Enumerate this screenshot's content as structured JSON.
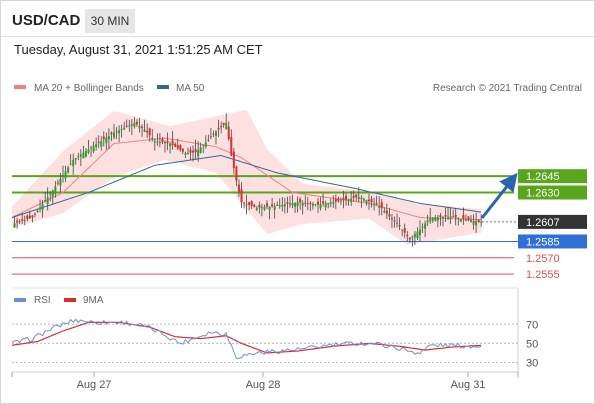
{
  "header": {
    "symbol": "USD/CAD",
    "timeframe": "30 MIN"
  },
  "datetime": "Tuesday, August 31, 2021 1:51:25 AM CET",
  "legend": {
    "bollinger": "MA 20 + Bollinger Bands",
    "ma50": "MA 50",
    "credit": "Research © 2021 Trading Central"
  },
  "rsi_legend": {
    "rsi": "RSI",
    "ma9": "9MA"
  },
  "colors": {
    "up": "#2e9e2e",
    "down": "#d63031",
    "ma20": "#f08080",
    "band_fill": "#fde1e1",
    "ma50": "#336699",
    "resistance": "#5aa51e",
    "support_blue": "#2f6fd6",
    "support_red": "#d9534f",
    "arrow": "#2b64b0",
    "current": "#333333",
    "rsi": "#6a8fd8",
    "rsi_ma": "#d32f2f"
  },
  "chart_data": [
    {
      "type": "line",
      "name": "price",
      "x_labels": [
        "Aug 27",
        "Aug 28",
        "Aug 31"
      ],
      "ylim": [
        1.2545,
        1.2715
      ],
      "current_price": "1.2607",
      "price_levels": [
        {
          "value": 1.2645,
          "label": "1.2645",
          "kind": "resistance"
        },
        {
          "value": 1.263,
          "label": "1.2630",
          "kind": "resistance"
        },
        {
          "value": 1.2585,
          "label": "1.2585",
          "kind": "support_blue"
        },
        {
          "value": 1.257,
          "label": "1.2570",
          "kind": "support_red"
        },
        {
          "value": 1.2555,
          "label": "1.2555",
          "kind": "support_red"
        }
      ],
      "close_path": [
        [
          0,
          1.2601
        ],
        [
          8,
          1.2607
        ],
        [
          16,
          1.2632
        ],
        [
          24,
          1.266
        ],
        [
          32,
          1.2673
        ],
        [
          40,
          1.2685
        ],
        [
          48,
          1.2694
        ],
        [
          52,
          1.2688
        ],
        [
          56,
          1.2677
        ],
        [
          62,
          1.2675
        ],
        [
          68,
          1.2666
        ],
        [
          72,
          1.2667
        ],
        [
          76,
          1.2676
        ],
        [
          80,
          1.2686
        ],
        [
          84,
          1.2694
        ],
        [
          86,
          1.2664
        ],
        [
          88,
          1.2641
        ],
        [
          90,
          1.2621
        ],
        [
          96,
          1.2616
        ],
        [
          104,
          1.2618
        ],
        [
          112,
          1.2621
        ],
        [
          120,
          1.2619
        ],
        [
          128,
          1.2622
        ],
        [
          136,
          1.2626
        ],
        [
          144,
          1.2618
        ],
        [
          148,
          1.2608
        ],
        [
          152,
          1.2599
        ],
        [
          156,
          1.2587
        ],
        [
          158,
          1.2592
        ],
        [
          160,
          1.2596
        ],
        [
          164,
          1.2607
        ],
        [
          172,
          1.2608
        ],
        [
          180,
          1.2604
        ],
        [
          184,
          1.2603
        ]
      ],
      "ma50_path": [
        [
          0,
          1.2607
        ],
        [
          30,
          1.263
        ],
        [
          56,
          1.2655
        ],
        [
          82,
          1.2664
        ],
        [
          104,
          1.2648
        ],
        [
          134,
          1.2634
        ],
        [
          160,
          1.262
        ],
        [
          184,
          1.2612
        ]
      ],
      "ma20_path": [
        [
          0,
          1.2607
        ],
        [
          20,
          1.263
        ],
        [
          40,
          1.2675
        ],
        [
          60,
          1.268
        ],
        [
          80,
          1.2672
        ],
        [
          90,
          1.2662
        ],
        [
          110,
          1.263
        ],
        [
          140,
          1.262
        ],
        [
          160,
          1.2607
        ],
        [
          184,
          1.2605
        ]
      ],
      "band_upper_path": [
        [
          0,
          1.2617
        ],
        [
          20,
          1.2668
        ],
        [
          40,
          1.2705
        ],
        [
          62,
          1.2691
        ],
        [
          80,
          1.27
        ],
        [
          92,
          1.2706
        ],
        [
          100,
          1.267
        ],
        [
          114,
          1.2638
        ],
        [
          140,
          1.2631
        ],
        [
          160,
          1.2619
        ],
        [
          184,
          1.2615
        ]
      ],
      "band_lower_path": [
        [
          0,
          1.2597
        ],
        [
          20,
          1.2611
        ],
        [
          40,
          1.2644
        ],
        [
          60,
          1.266
        ],
        [
          80,
          1.2648
        ],
        [
          90,
          1.262
        ],
        [
          100,
          1.2592
        ],
        [
          114,
          1.2601
        ],
        [
          140,
          1.2606
        ],
        [
          155,
          1.2582
        ],
        [
          184,
          1.2593
        ]
      ]
    },
    {
      "type": "line",
      "name": "rsi",
      "ylim": [
        20,
        85
      ],
      "y_ticks": [
        30,
        50,
        70
      ],
      "rsi_path": [
        [
          0,
          50
        ],
        [
          8,
          55
        ],
        [
          16,
          66
        ],
        [
          24,
          74
        ],
        [
          28,
          74
        ],
        [
          32,
          72
        ],
        [
          44,
          72
        ],
        [
          52,
          68
        ],
        [
          60,
          59
        ],
        [
          66,
          50
        ],
        [
          72,
          56
        ],
        [
          78,
          62
        ],
        [
          84,
          60
        ],
        [
          88,
          36
        ],
        [
          96,
          40
        ],
        [
          104,
          42
        ],
        [
          114,
          44
        ],
        [
          124,
          48
        ],
        [
          134,
          50
        ],
        [
          142,
          50
        ],
        [
          150,
          46
        ],
        [
          156,
          42
        ],
        [
          160,
          40
        ],
        [
          164,
          48
        ],
        [
          172,
          48
        ],
        [
          180,
          47
        ],
        [
          184,
          48
        ]
      ],
      "ma9_path": [
        [
          0,
          48
        ],
        [
          10,
          52
        ],
        [
          20,
          63
        ],
        [
          30,
          72
        ],
        [
          42,
          72
        ],
        [
          54,
          67
        ],
        [
          64,
          57
        ],
        [
          74,
          55
        ],
        [
          84,
          58
        ],
        [
          90,
          50
        ],
        [
          100,
          40
        ],
        [
          112,
          42
        ],
        [
          126,
          47
        ],
        [
          140,
          50
        ],
        [
          152,
          47
        ],
        [
          162,
          43
        ],
        [
          172,
          46
        ],
        [
          184,
          48
        ]
      ]
    }
  ]
}
